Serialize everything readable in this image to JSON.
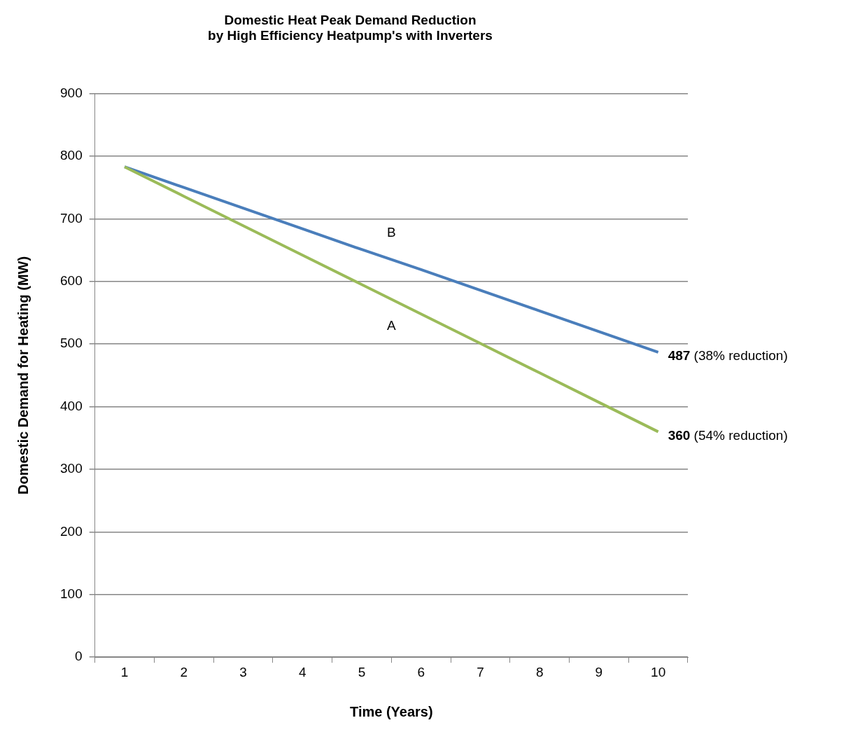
{
  "chart_data": {
    "type": "line",
    "title": "Domestic Heat Peak Demand Reduction\nby High Efficiency Heatpump's with Inverters",
    "xlabel": "Time (Years)",
    "ylabel": "Domestic Demand for Heating (MW)",
    "categories": [
      "1",
      "2",
      "3",
      "4",
      "5",
      "6",
      "7",
      "8",
      "9",
      "10"
    ],
    "series": [
      {
        "name": "A",
        "color": "#9bbb59",
        "values": [
          783,
          736,
          689,
          642,
          595,
          548,
          501,
          454,
          407,
          360
        ]
      },
      {
        "name": "B",
        "color": "#4a7ebb",
        "values": [
          783,
          750,
          717,
          684,
          651,
          619,
          586,
          553,
          520,
          487
        ]
      }
    ],
    "ylim": [
      0,
      900
    ],
    "yticks": [
      0,
      100,
      200,
      300,
      400,
      500,
      600,
      700,
      800,
      900
    ],
    "grid": "y",
    "legend": false,
    "marker": "none",
    "line_style": "solid",
    "annotations": [
      {
        "text": "487 (38% reduction)",
        "x": "10",
        "y": 487
      },
      {
        "text": "360 (54% reduction)",
        "x": "10",
        "y": 360
      }
    ]
  }
}
